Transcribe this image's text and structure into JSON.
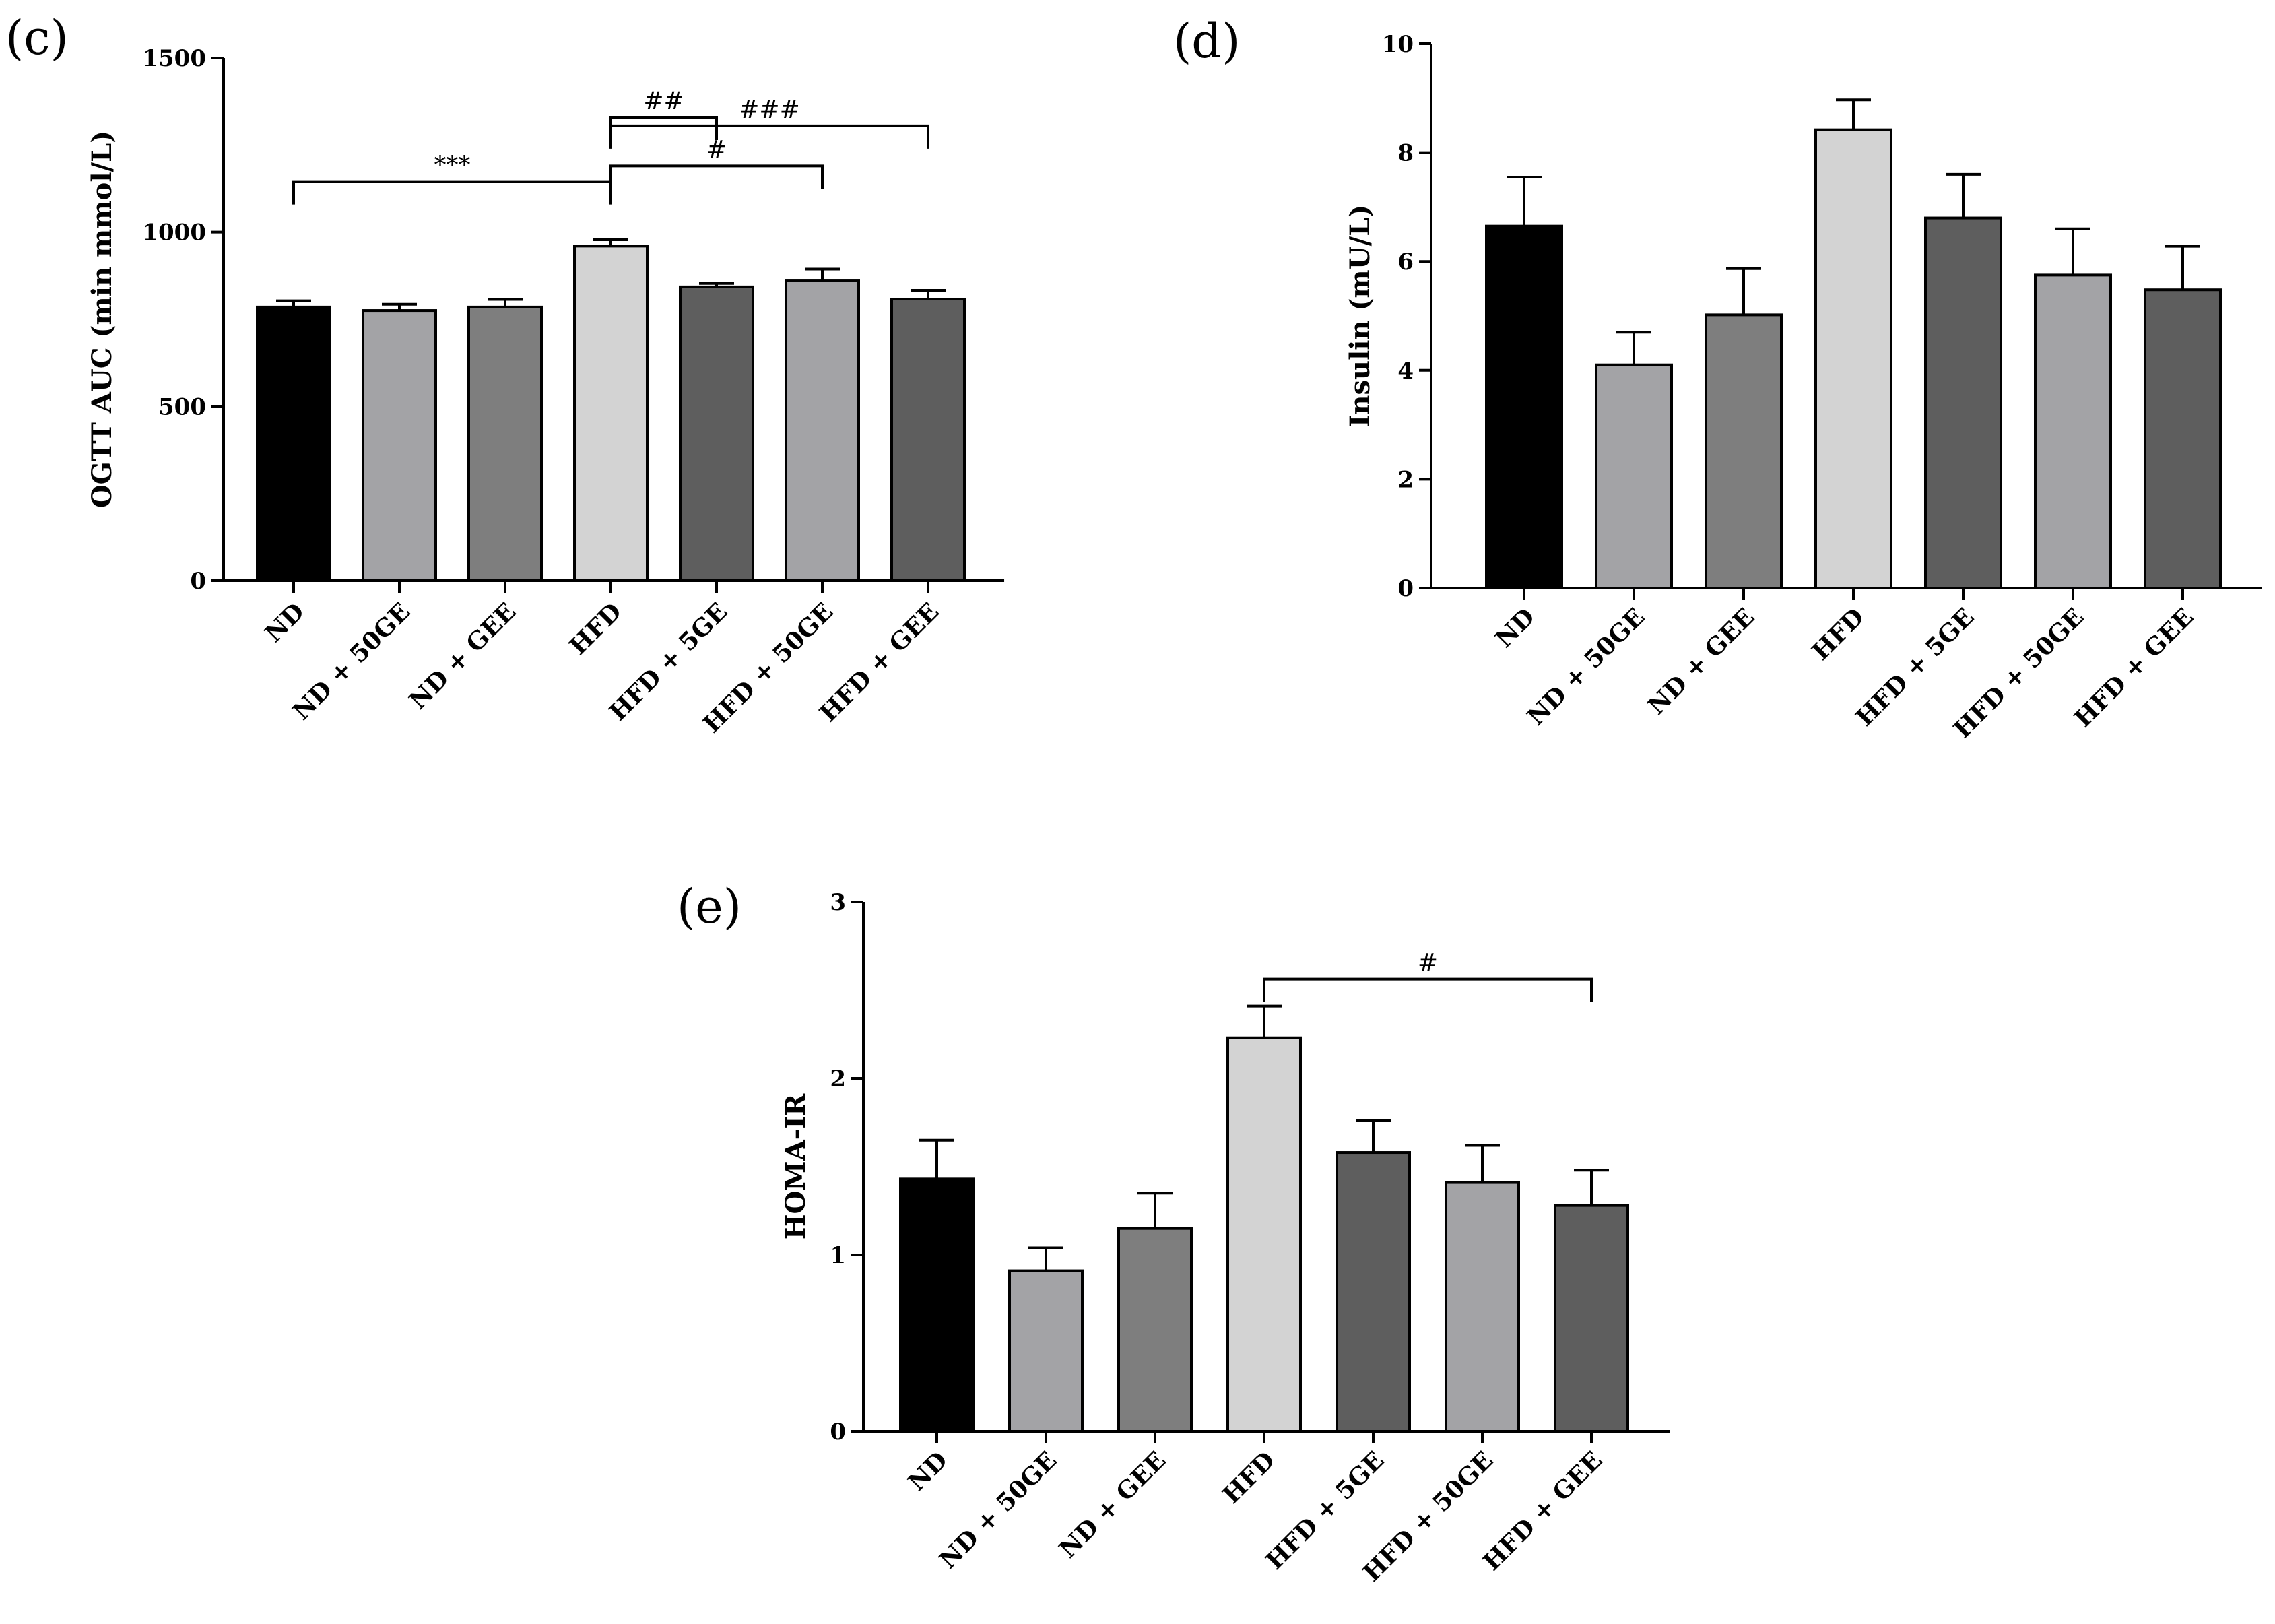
{
  "chart_data": [
    {
      "panel": "(c)",
      "type": "bar",
      "ylabel": "OGTT AUC (min mmol/L)",
      "xlabel": "",
      "ylim": [
        0,
        1500
      ],
      "yticks": [
        0,
        500,
        1000,
        1500
      ],
      "categories": [
        "ND",
        "ND + 50GE",
        "ND + GEE",
        "HFD",
        "HFD + 5GE",
        "HFD + 50GE",
        "HFD + GEE"
      ],
      "values": [
        785,
        775,
        785,
        960,
        843,
        862,
        808
      ],
      "errors": [
        18,
        18,
        22,
        18,
        10,
        32,
        25
      ],
      "colors": [
        "#000000",
        "#a3a3a6",
        "#7e7e7e",
        "#d3d3d3",
        "#5e5e5e",
        "#a3a3a6",
        "#5e5e5e"
      ],
      "significance": [
        {
          "from": 0,
          "to": 3,
          "label": "***"
        },
        {
          "from": 3,
          "to": 4,
          "label": "##"
        },
        {
          "from": 3,
          "to": 5,
          "label": "#"
        },
        {
          "from": 3,
          "to": 6,
          "label": "###"
        }
      ]
    },
    {
      "panel": "(d)",
      "type": "bar",
      "ylabel": "Insulin (mU/L)",
      "xlabel": "",
      "ylim": [
        0,
        10
      ],
      "yticks": [
        0,
        2,
        4,
        6,
        8,
        10
      ],
      "categories": [
        "ND",
        "ND + 50GE",
        "ND + GEE",
        "HFD",
        "HFD + 5GE",
        "HFD + 50GE",
        "HFD + GEE"
      ],
      "values": [
        6.65,
        4.1,
        5.02,
        8.42,
        6.8,
        5.75,
        5.48
      ],
      "errors": [
        0.9,
        0.6,
        0.85,
        0.55,
        0.8,
        0.85,
        0.8
      ],
      "colors": [
        "#000000",
        "#a3a3a6",
        "#7e7e7e",
        "#d3d3d3",
        "#5e5e5e",
        "#a3a3a6",
        "#5e5e5e"
      ],
      "significance": []
    },
    {
      "panel": "(e)",
      "type": "bar",
      "ylabel": "HOMA-IR",
      "xlabel": "",
      "ylim": [
        0,
        3
      ],
      "yticks": [
        0,
        1,
        2,
        3
      ],
      "categories": [
        "ND",
        "ND + 50GE",
        "ND + GEE",
        "HFD",
        "HFD + 5GE",
        "HFD + 50GE",
        "HFD + GEE"
      ],
      "values": [
        1.43,
        0.91,
        1.15,
        2.23,
        1.58,
        1.41,
        1.28
      ],
      "errors": [
        0.22,
        0.13,
        0.2,
        0.18,
        0.18,
        0.21,
        0.2
      ],
      "colors": [
        "#000000",
        "#a3a3a6",
        "#7e7e7e",
        "#d3d3d3",
        "#5e5e5e",
        "#a3a3a6",
        "#5e5e5e"
      ],
      "significance": [
        {
          "from": 3,
          "to": 6,
          "label": "#"
        }
      ]
    }
  ]
}
